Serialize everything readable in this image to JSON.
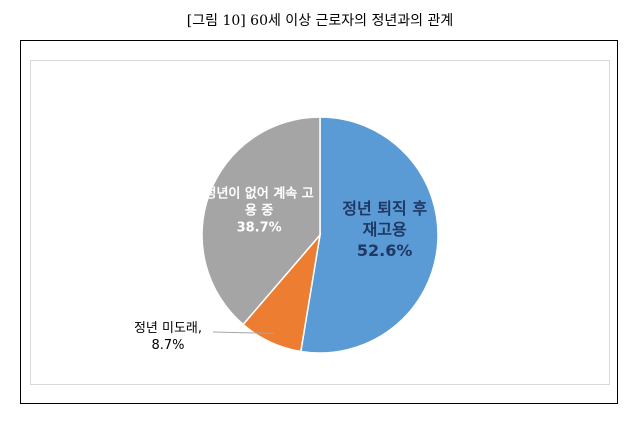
{
  "chart_data": {
    "type": "pie",
    "title": "[그림 10] 60세 이상 근로자의 정년과의 관계",
    "categories": [
      "정년 퇴직 후 재고용",
      "정년 미도래,",
      "정년이 없어 계속 고용 중"
    ],
    "values": [
      52.6,
      8.7,
      38.7
    ],
    "value_labels": [
      "52.6%",
      "8.7%",
      "38.7%"
    ],
    "colors": [
      "#5b9bd5",
      "#ed7d31",
      "#a5a5a5"
    ]
  }
}
